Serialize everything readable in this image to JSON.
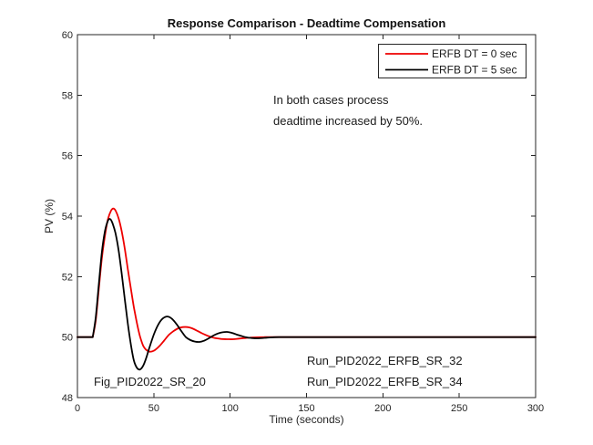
{
  "chart_data": {
    "type": "line",
    "title": "Response Comparison - Deadtime Compensation",
    "xlabel": "Time (seconds)",
    "ylabel": "PV (%)",
    "xlim": [
      0,
      300
    ],
    "ylim": [
      48,
      60
    ],
    "x_ticks": [
      0,
      50,
      100,
      150,
      200,
      250,
      300
    ],
    "y_ticks": [
      48,
      50,
      52,
      54,
      56,
      58,
      60
    ],
    "grid": false,
    "legend_position": "top-right",
    "axis_color": "#262626",
    "series": [
      {
        "name": "ERFB DT = 0 sec",
        "color": "#ee0000",
        "points": [
          [
            0,
            50
          ],
          [
            10,
            50
          ],
          [
            10,
            50
          ],
          [
            12,
            50.55
          ],
          [
            14,
            51.6
          ],
          [
            16,
            52.6
          ],
          [
            18,
            53.35
          ],
          [
            20,
            53.9
          ],
          [
            22,
            54.18
          ],
          [
            23.5,
            54.25
          ],
          [
            25,
            54.18
          ],
          [
            27,
            53.92
          ],
          [
            29,
            53.5
          ],
          [
            31,
            52.92
          ],
          [
            33,
            52.25
          ],
          [
            35,
            51.6
          ],
          [
            37,
            50.98
          ],
          [
            39,
            50.45
          ],
          [
            41,
            50.02
          ],
          [
            43,
            49.72
          ],
          [
            45,
            49.58
          ],
          [
            47,
            49.52
          ],
          [
            49,
            49.53
          ],
          [
            51,
            49.58
          ],
          [
            54,
            49.72
          ],
          [
            57,
            49.9
          ],
          [
            60,
            50.08
          ],
          [
            63,
            50.2
          ],
          [
            66,
            50.29
          ],
          [
            69,
            50.33
          ],
          [
            72,
            50.33
          ],
          [
            75,
            50.29
          ],
          [
            78,
            50.22
          ],
          [
            81,
            50.14
          ],
          [
            84,
            50.07
          ],
          [
            87,
            50.01
          ],
          [
            90,
            49.97
          ],
          [
            94,
            49.94
          ],
          [
            98,
            49.93
          ],
          [
            102,
            49.93
          ],
          [
            106,
            49.95
          ],
          [
            110,
            49.97
          ],
          [
            116,
            49.99
          ],
          [
            124,
            50
          ],
          [
            140,
            50
          ],
          [
            300,
            50
          ]
        ]
      },
      {
        "name": "ERFB DT = 5 sec",
        "color": "#000000",
        "points": [
          [
            0,
            50
          ],
          [
            10,
            50
          ],
          [
            10,
            50
          ],
          [
            12,
            50.65
          ],
          [
            14,
            51.75
          ],
          [
            16,
            52.8
          ],
          [
            18,
            53.5
          ],
          [
            20,
            53.85
          ],
          [
            21.5,
            53.9
          ],
          [
            23,
            53.76
          ],
          [
            25,
            53.42
          ],
          [
            27,
            52.85
          ],
          [
            29,
            52.1
          ],
          [
            31,
            51.25
          ],
          [
            33,
            50.45
          ],
          [
            35,
            49.75
          ],
          [
            37,
            49.22
          ],
          [
            39,
            48.98
          ],
          [
            41,
            48.93
          ],
          [
            43,
            49.05
          ],
          [
            45,
            49.3
          ],
          [
            47,
            49.63
          ],
          [
            50,
            50.08
          ],
          [
            53,
            50.42
          ],
          [
            56,
            50.62
          ],
          [
            59,
            50.68
          ],
          [
            62,
            50.6
          ],
          [
            65,
            50.42
          ],
          [
            68,
            50.2
          ],
          [
            71,
            50.0
          ],
          [
            74,
            49.9
          ],
          [
            77,
            49.85
          ],
          [
            80,
            49.84
          ],
          [
            83,
            49.88
          ],
          [
            86,
            49.96
          ],
          [
            89,
            50.05
          ],
          [
            92,
            50.12
          ],
          [
            95,
            50.16
          ],
          [
            98,
            50.17
          ],
          [
            101,
            50.14
          ],
          [
            104,
            50.09
          ],
          [
            107,
            50.04
          ],
          [
            110,
            50.0
          ],
          [
            114,
            49.97
          ],
          [
            118,
            49.96
          ],
          [
            124,
            49.98
          ],
          [
            132,
            50
          ],
          [
            150,
            50
          ],
          [
            300,
            50
          ]
        ]
      }
    ],
    "annotations": {
      "note_line1": "In both cases process",
      "note_line2": "deadtime increased by 50%.",
      "fig_label": "Fig_PID2022_SR_20",
      "run_label_1": "Run_PID2022_ERFB_SR_32",
      "run_label_2": "Run_PID2022_ERFB_SR_34"
    }
  }
}
